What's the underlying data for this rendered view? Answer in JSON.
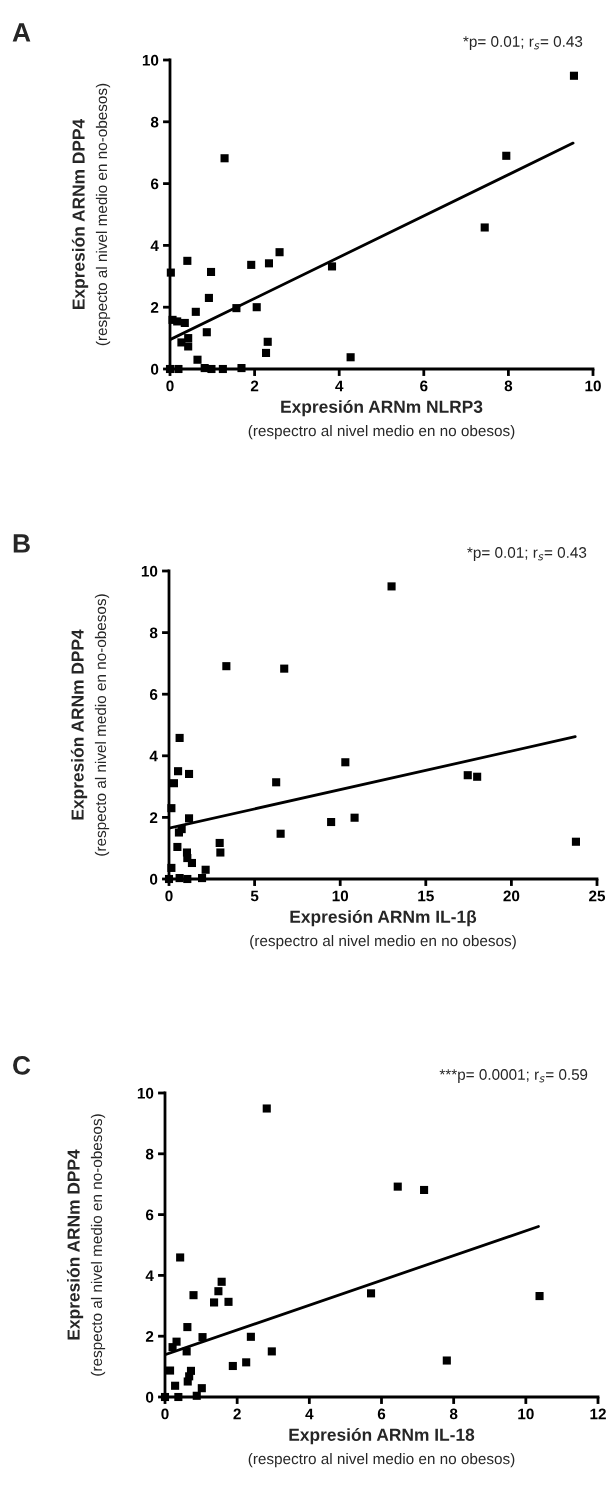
{
  "chart_data": [
    {
      "type": "scatter",
      "title": "A",
      "xlabel": "Expresión ARNm NLRP3\n(respectro al nivel medio en no obesos)",
      "ylabel": "Expresión ARNm DPP4\n(respecto al nivel medio en no-obesos)",
      "annotations": [
        "*p= 0.01; r$_{s}$= 0.43"
      ],
      "marker": "square",
      "xlim": [
        0,
        10
      ],
      "ylim": [
        0,
        10
      ],
      "xticks": [
        0,
        2,
        4,
        6,
        8,
        10
      ],
      "yticks": [
        0,
        2,
        4,
        6,
        8,
        10
      ],
      "series": [
        {
          "type": "scatter",
          "color": "#000000",
          "x": [
            0,
            0.2,
            0.02,
            0.06,
            0.17,
            0.35,
            0.41,
            0.27,
            0.43,
            0.43,
            0.61,
            0.65,
            0.87,
            0.92,
            0.97,
            0.82,
            0.98,
            1.25,
            1.29,
            1.57,
            1.69,
            1.92,
            2.05,
            2.27,
            2.31,
            2.34,
            2.59,
            3.83,
            4.27,
            7.44,
            7.95,
            9.55
          ],
          "values": [
            0,
            0,
            3.12,
            1.59,
            1.54,
            1.49,
            3.5,
            0.86,
            1.0,
            0.73,
            1.85,
            0.3,
            1.19,
            2.3,
            3.14,
            0.03,
            0,
            0,
            6.82,
            1.97,
            0.03,
            3.37,
            2.0,
            0.52,
            0.88,
            3.42,
            3.78,
            3.32,
            0.38,
            4.58,
            6.9,
            9.49
          ]
        },
        {
          "type": "line",
          "color": "#000000",
          "marker": "none",
          "line_style": "solid",
          "x": [
            0,
            9.53
          ],
          "values": [
            0.95,
            7.31
          ]
        }
      ]
    },
    {
      "type": "scatter",
      "title": "B",
      "xlabel": "Expresión ARNm IL-1β\n(respectro al nivel medio en no obesos)",
      "ylabel": "Expresión ARNm DPP4\n(respecto al nivel medio en no-obesos)",
      "annotations": [
        "*p= 0.01; r$_{s}$= 0.43"
      ],
      "marker": "square",
      "xlim": [
        0,
        25
      ],
      "ylim": [
        0,
        10
      ],
      "xticks": [
        0,
        5,
        10,
        15,
        20,
        25
      ],
      "yticks": [
        0,
        2,
        4,
        6,
        8,
        10
      ],
      "series": [
        {
          "type": "scatter",
          "color": "#000000",
          "x": [
            13.0,
            3.35,
            6.73,
            0.62,
            0.53,
            1.17,
            0.29,
            6.26,
            10.3,
            17.45,
            18.0,
            0.14,
            1.17,
            10.84,
            9.47,
            6.52,
            0.74,
            0.58,
            23.77,
            2.96,
            3.0,
            0.49,
            1.05,
            1.07,
            1.34,
            2.14,
            1.93,
            0.14,
            0,
            0.62,
            1.07
          ],
          "values": [
            9.5,
            6.91,
            6.83,
            4.58,
            3.5,
            3.41,
            3.11,
            3.14,
            3.79,
            3.37,
            3.32,
            2.3,
            1.97,
            1.99,
            1.85,
            1.47,
            1.62,
            1.51,
            1.21,
            1.17,
            0.86,
            1.04,
            0.86,
            0.68,
            0.52,
            0.3,
            0.03,
            0.36,
            0,
            0.03,
            0
          ]
        },
        {
          "type": "line",
          "color": "#000000",
          "marker": "none",
          "line_style": "solid",
          "x": [
            0,
            23.73
          ],
          "values": [
            1.65,
            4.62
          ]
        }
      ]
    },
    {
      "type": "scatter",
      "title": "C",
      "xlabel": "Expresión ARNm IL-18\n(respectro al nivel medio en no obesos)",
      "ylabel": "Expresión ARNm DPP4\n(respecto al nivel medio en no-obesos)",
      "annotations": [
        "***p= 0.0001; r$_{s}$= 0.59"
      ],
      "marker": "square",
      "xlim": [
        0,
        12
      ],
      "ylim": [
        0,
        10
      ],
      "xticks": [
        0,
        2,
        4,
        6,
        8,
        10,
        12
      ],
      "yticks": [
        0,
        2,
        4,
        6,
        8,
        10
      ],
      "series": [
        {
          "type": "scatter",
          "color": "#000000",
          "x": [
            2.82,
            6.45,
            7.18,
            0.42,
            1.57,
            1.48,
            0.79,
            1.36,
            1.76,
            5.71,
            10.38,
            0.62,
            1.04,
            2.38,
            0.32,
            0.21,
            0.6,
            2.96,
            7.81,
            1.88,
            2.25,
            0.14,
            0.72,
            0.67,
            0.63,
            0.28,
            1.02,
            0.88,
            0,
            0.37
          ],
          "values": [
            9.49,
            6.92,
            6.81,
            4.59,
            3.79,
            3.48,
            3.35,
            3.11,
            3.13,
            3.41,
            3.32,
            2.3,
            1.97,
            1.98,
            1.82,
            1.64,
            1.5,
            1.5,
            1.2,
            1.02,
            1.14,
            0.87,
            0.86,
            0.68,
            0.51,
            0.37,
            0.29,
            0.04,
            0,
            0
          ]
        },
        {
          "type": "line",
          "color": "#000000",
          "marker": "none",
          "line_style": "solid",
          "x": [
            0,
            10.35
          ],
          "values": [
            1.39,
            5.61
          ]
        }
      ]
    }
  ]
}
